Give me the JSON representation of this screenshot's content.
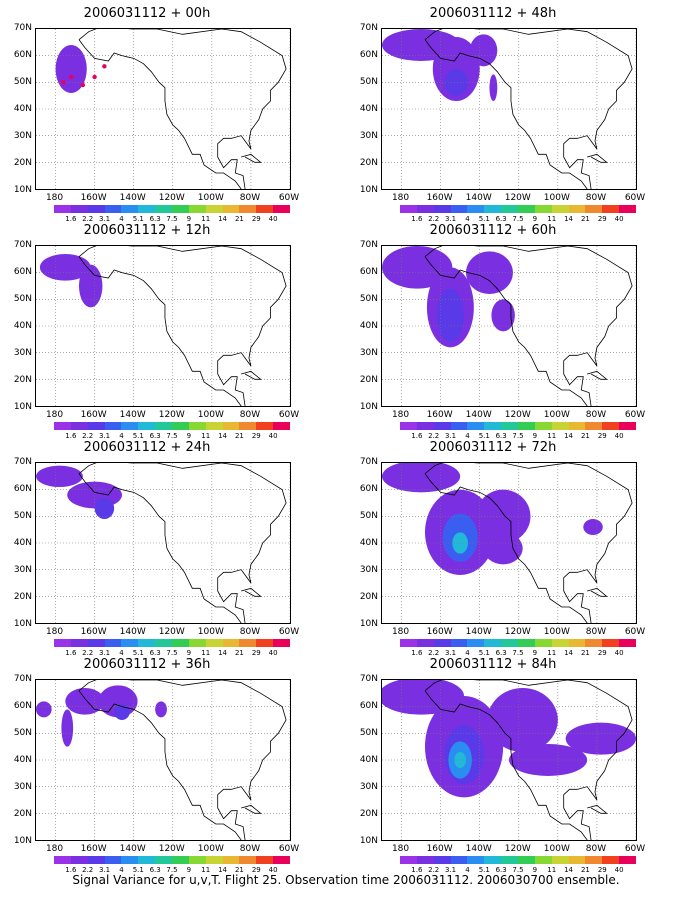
{
  "caption": "Signal Variance for u,v,T. Flight 25. Observation time 2006031112. 2006030700 ensemble.",
  "colorbar": {
    "levels": [
      "1.6",
      "2.2",
      "3.1",
      "4",
      "5.1",
      "6.3",
      "7.5",
      "9",
      "11",
      "14",
      "21",
      "29",
      "40"
    ],
    "colors": [
      "#9a33e8",
      "#7a30e0",
      "#5a3ae8",
      "#3a5ff0",
      "#2a8ef0",
      "#22b8d8",
      "#22c898",
      "#33cc55",
      "#88d833",
      "#c8d433",
      "#e8b833",
      "#f08830",
      "#f04020",
      "#e8005a"
    ]
  },
  "axes": {
    "y_ticks": [
      "70N",
      "60N",
      "50N",
      "40N",
      "30N",
      "20N",
      "10N"
    ],
    "x_ticks": [
      "180",
      "160W",
      "140W",
      "120W",
      "100W",
      "80W",
      "60W"
    ]
  },
  "chart_data": [
    {
      "type": "heatmap",
      "title": "2006031112 + 00h",
      "xlim": [
        -190,
        -60
      ],
      "ylim": [
        10,
        70
      ],
      "blobs": [
        {
          "lon": -172,
          "lat": 55,
          "rlon": 8,
          "rlat": 9,
          "level": 1
        }
      ],
      "observations": [
        {
          "lon": -172,
          "lat": 52
        },
        {
          "lon": -166,
          "lat": 49
        },
        {
          "lon": -160,
          "lat": 52
        },
        {
          "lon": -155,
          "lat": 56
        },
        {
          "lon": -176,
          "lat": 50
        }
      ]
    },
    {
      "type": "heatmap",
      "title": "2006031112 + 12h",
      "xlim": [
        -190,
        -60
      ],
      "ylim": [
        10,
        70
      ],
      "blobs": [
        {
          "lon": -175,
          "lat": 62,
          "rlon": 13,
          "rlat": 5,
          "level": 1
        },
        {
          "lon": -162,
          "lat": 55,
          "rlon": 6,
          "rlat": 8,
          "level": 1
        }
      ]
    },
    {
      "type": "heatmap",
      "title": "2006031112 + 24h",
      "xlim": [
        -190,
        -60
      ],
      "ylim": [
        10,
        70
      ],
      "blobs": [
        {
          "lon": -178,
          "lat": 65,
          "rlon": 12,
          "rlat": 4,
          "level": 1
        },
        {
          "lon": -160,
          "lat": 58,
          "rlon": 14,
          "rlat": 5,
          "level": 1
        },
        {
          "lon": -155,
          "lat": 53,
          "rlon": 5,
          "rlat": 4,
          "level": 2
        }
      ]
    },
    {
      "type": "heatmap",
      "title": "2006031112 + 36h",
      "xlim": [
        -190,
        -60
      ],
      "ylim": [
        10,
        70
      ],
      "blobs": [
        {
          "lon": -186,
          "lat": 59,
          "rlon": 4,
          "rlat": 3,
          "level": 1
        },
        {
          "lon": -165,
          "lat": 62,
          "rlon": 10,
          "rlat": 5,
          "level": 1
        },
        {
          "lon": -148,
          "lat": 62,
          "rlon": 10,
          "rlat": 6,
          "level": 1
        },
        {
          "lon": -126,
          "lat": 59,
          "rlon": 3,
          "rlat": 3,
          "level": 1
        },
        {
          "lon": -174,
          "lat": 52,
          "rlon": 3,
          "rlat": 7,
          "level": 1
        },
        {
          "lon": -146,
          "lat": 58,
          "rlon": 4,
          "rlat": 3,
          "level": 2
        }
      ]
    },
    {
      "type": "heatmap",
      "title": "2006031112 + 48h",
      "xlim": [
        -190,
        -60
      ],
      "ylim": [
        10,
        70
      ],
      "blobs": [
        {
          "lon": -170,
          "lat": 64,
          "rlon": 20,
          "rlat": 6,
          "level": 1
        },
        {
          "lon": -152,
          "lat": 55,
          "rlon": 12,
          "rlat": 12,
          "level": 1
        },
        {
          "lon": -138,
          "lat": 62,
          "rlon": 7,
          "rlat": 6,
          "level": 1
        },
        {
          "lon": -133,
          "lat": 48,
          "rlon": 2,
          "rlat": 5,
          "level": 1
        },
        {
          "lon": -152,
          "lat": 50,
          "rlon": 6,
          "rlat": 5,
          "level": 2
        }
      ]
    },
    {
      "type": "heatmap",
      "title": "2006031112 + 60h",
      "xlim": [
        -190,
        -60
      ],
      "ylim": [
        10,
        70
      ],
      "blobs": [
        {
          "lon": -172,
          "lat": 62,
          "rlon": 18,
          "rlat": 8,
          "level": 1
        },
        {
          "lon": -155,
          "lat": 47,
          "rlon": 12,
          "rlat": 15,
          "level": 1
        },
        {
          "lon": -135,
          "lat": 60,
          "rlon": 12,
          "rlat": 8,
          "level": 1
        },
        {
          "lon": -128,
          "lat": 44,
          "rlon": 6,
          "rlat": 6,
          "level": 1
        },
        {
          "lon": -155,
          "lat": 44,
          "rlon": 7,
          "rlat": 10,
          "level": 2
        }
      ]
    },
    {
      "type": "heatmap",
      "title": "2006031112 + 72h",
      "xlim": [
        -190,
        -60
      ],
      "ylim": [
        10,
        70
      ],
      "blobs": [
        {
          "lon": -170,
          "lat": 65,
          "rlon": 20,
          "rlat": 6,
          "level": 1
        },
        {
          "lon": -150,
          "lat": 44,
          "rlon": 18,
          "rlat": 16,
          "level": 1
        },
        {
          "lon": -128,
          "lat": 50,
          "rlon": 14,
          "rlat": 10,
          "level": 1
        },
        {
          "lon": -128,
          "lat": 38,
          "rlon": 10,
          "rlat": 6,
          "level": 1
        },
        {
          "lon": -82,
          "lat": 46,
          "rlon": 5,
          "rlat": 3,
          "level": 1
        },
        {
          "lon": -150,
          "lat": 42,
          "rlon": 9,
          "rlat": 9,
          "level": 3
        },
        {
          "lon": -150,
          "lat": 40,
          "rlon": 4,
          "rlat": 4,
          "level": 5
        }
      ]
    },
    {
      "type": "heatmap",
      "title": "2006031112 + 84h",
      "xlim": [
        -190,
        -60
      ],
      "ylim": [
        10,
        70
      ],
      "blobs": [
        {
          "lon": -170,
          "lat": 64,
          "rlon": 22,
          "rlat": 7,
          "level": 1
        },
        {
          "lon": -148,
          "lat": 45,
          "rlon": 20,
          "rlat": 19,
          "level": 1
        },
        {
          "lon": -118,
          "lat": 55,
          "rlon": 18,
          "rlat": 12,
          "level": 1
        },
        {
          "lon": -105,
          "lat": 40,
          "rlon": 20,
          "rlat": 6,
          "level": 1
        },
        {
          "lon": -78,
          "lat": 48,
          "rlon": 18,
          "rlat": 6,
          "level": 1
        },
        {
          "lon": -148,
          "lat": 42,
          "rlon": 10,
          "rlat": 11,
          "level": 2
        },
        {
          "lon": -150,
          "lat": 40,
          "rlon": 6,
          "rlat": 7,
          "level": 4
        },
        {
          "lon": -150,
          "lat": 40,
          "rlon": 3,
          "rlat": 3,
          "level": 5
        }
      ]
    }
  ]
}
